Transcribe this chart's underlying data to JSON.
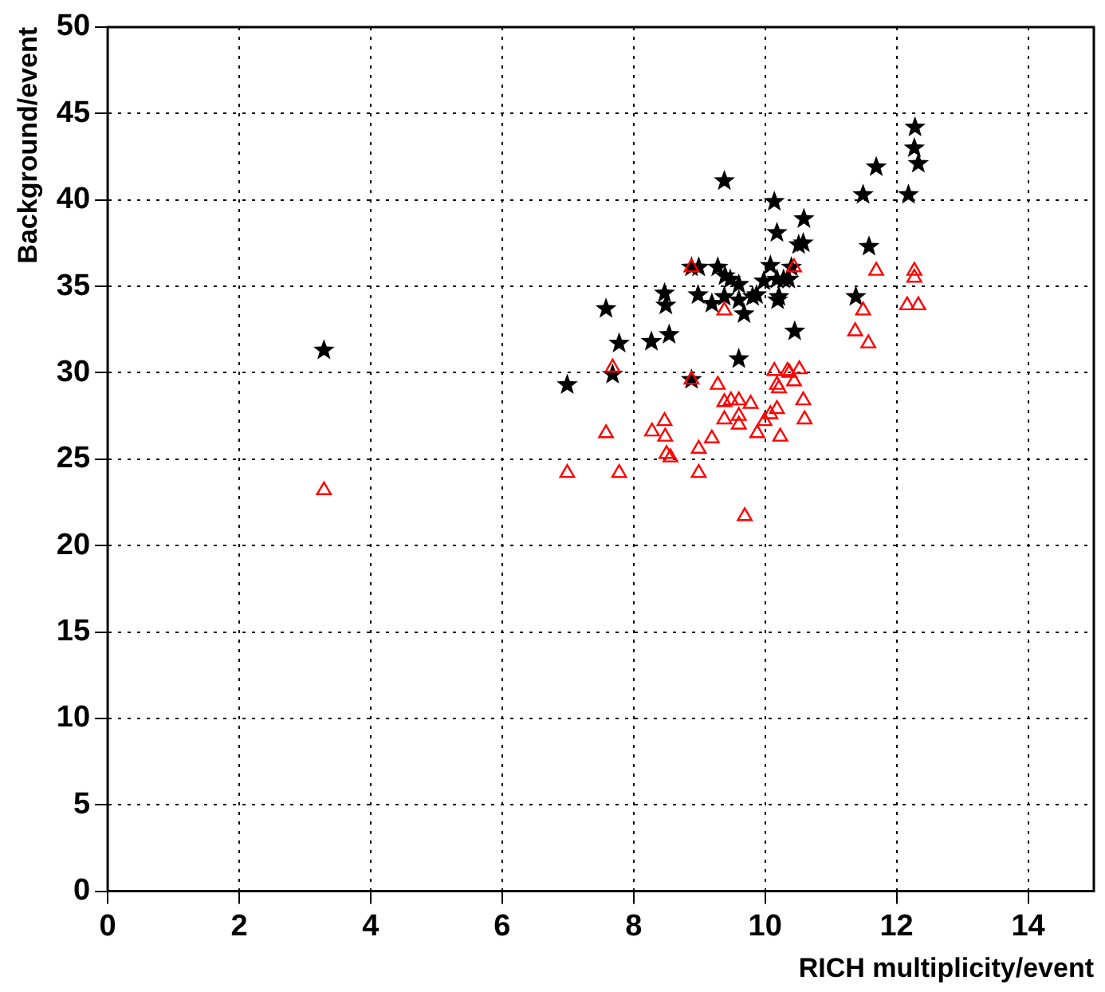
{
  "chart_data": {
    "type": "scatter",
    "xlabel": "RICH multiplicity/event",
    "ylabel": "Background/event",
    "xlim": [
      0,
      15
    ],
    "ylim": [
      0,
      50
    ],
    "xticks": [
      0,
      2,
      4,
      6,
      8,
      10,
      12,
      14
    ],
    "yticks": [
      0,
      5,
      10,
      15,
      20,
      25,
      30,
      35,
      40,
      45,
      50
    ],
    "grid": true,
    "legend": false,
    "series": [
      {
        "color": "#000000",
        "marker": "star",
        "x": [
          3.29,
          6.99,
          7.58,
          7.68,
          7.78,
          8.27,
          8.47,
          8.49,
          8.54,
          8.88,
          8.88,
          8.99,
          8.98,
          9.19,
          9.28,
          9.38,
          9.38,
          9.39,
          9.47,
          9.6,
          9.6,
          9.68,
          9.6,
          9.81,
          9.87,
          9.98,
          10.08,
          10.14,
          10.18,
          10.18,
          10.21,
          10.19,
          10.28,
          10.36,
          10.4,
          10.45,
          10.51,
          10.58,
          10.59,
          11.38,
          11.49,
          11.58,
          11.69,
          12.18,
          12.28,
          12.27,
          12.33
        ],
        "values": [
          31.3,
          29.3,
          33.7,
          29.9,
          31.7,
          31.8,
          34.6,
          33.9,
          32.2,
          36.1,
          29.6,
          36.1,
          34.5,
          34.0,
          36.1,
          41.1,
          34.4,
          35.6,
          35.4,
          35.1,
          34.2,
          33.4,
          30.8,
          34.4,
          34.5,
          35.3,
          36.2,
          39.9,
          38.1,
          35.4,
          34.4,
          34.2,
          35.4,
          35.4,
          36.1,
          32.4,
          37.4,
          37.5,
          38.9,
          34.4,
          40.3,
          37.3,
          41.9,
          40.3,
          44.2,
          43.0,
          42.1
        ]
      },
      {
        "color": "#ff0000",
        "marker": "triangle",
        "x": [
          3.29,
          6.99,
          7.58,
          7.68,
          7.78,
          8.28,
          8.47,
          8.48,
          8.5,
          8.56,
          8.88,
          8.88,
          8.99,
          8.99,
          9.19,
          9.28,
          9.38,
          9.38,
          9.38,
          9.48,
          9.6,
          9.6,
          9.6,
          9.69,
          9.78,
          9.88,
          9.99,
          10.08,
          10.14,
          10.18,
          10.21,
          10.18,
          10.23,
          10.34,
          10.37,
          10.44,
          10.52,
          10.44,
          10.58,
          10.6,
          11.37,
          11.49,
          11.57,
          11.69,
          12.27,
          12.27,
          12.16,
          12.33
        ],
        "values": [
          23.2,
          24.2,
          26.5,
          30.3,
          24.2,
          26.6,
          27.2,
          26.3,
          25.3,
          25.1,
          36.1,
          29.6,
          25.6,
          24.2,
          26.2,
          29.3,
          33.6,
          28.3,
          27.3,
          28.4,
          28.4,
          27.5,
          27.0,
          21.7,
          28.2,
          26.5,
          27.2,
          27.6,
          30.1,
          29.3,
          29.1,
          27.9,
          26.3,
          30.1,
          30.0,
          29.5,
          30.2,
          36.1,
          28.4,
          27.3,
          32.4,
          33.6,
          31.7,
          35.9,
          35.9,
          35.5,
          33.9,
          33.9
        ]
      }
    ]
  }
}
